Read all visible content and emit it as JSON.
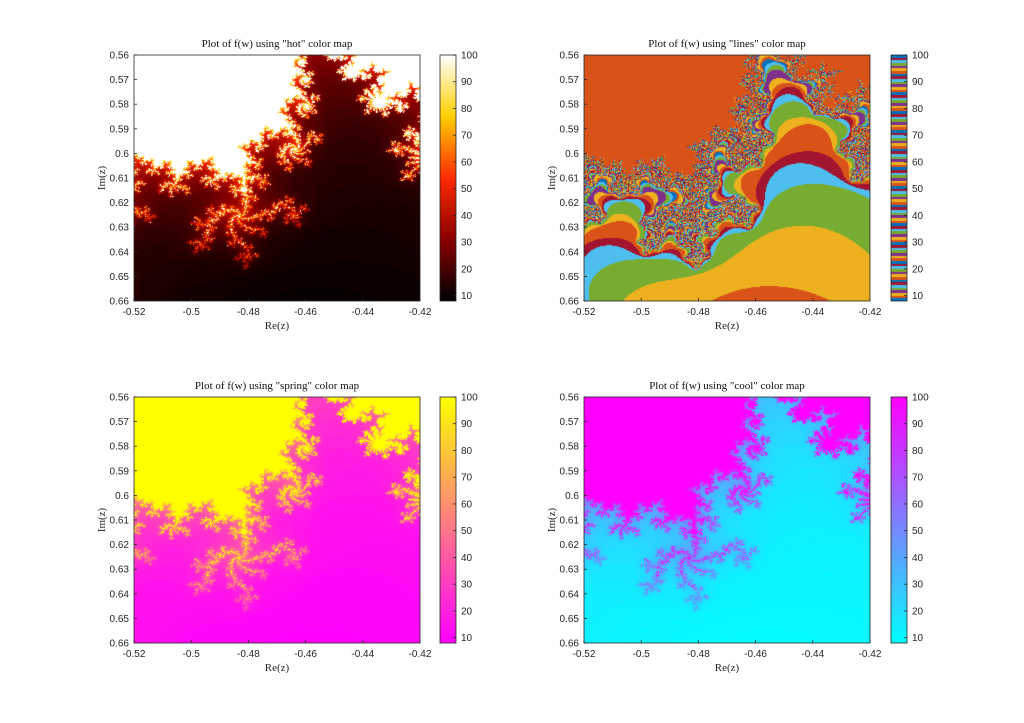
{
  "chart_data": [
    {
      "type": "heatmap",
      "title": "Plot of f(w) using \"hot\" color map",
      "xlabel": "Re(z)",
      "ylabel": "Im(z)",
      "xlim": [
        -0.52,
        -0.42
      ],
      "ylim": [
        0.56,
        0.66
      ],
      "y_direction": "reversed",
      "x_ticks": [
        "-0.52",
        "-0.5",
        "-0.48",
        "-0.46",
        "-0.44",
        "-0.42"
      ],
      "y_ticks": [
        "0.56",
        "0.57",
        "0.58",
        "0.59",
        "0.6",
        "0.61",
        "0.62",
        "0.63",
        "0.64",
        "0.65",
        "0.66"
      ],
      "colorbar": {
        "colormap": "hot",
        "range": [
          8,
          100
        ],
        "ticks": [
          "10",
          "20",
          "30",
          "40",
          "50",
          "60",
          "70",
          "80",
          "90",
          "100"
        ]
      },
      "colors": [
        "#000000",
        "#8b0000",
        "#ff2a00",
        "#ffd000",
        "#ffffff"
      ]
    },
    {
      "type": "heatmap",
      "title": "Plot of f(w) using \"lines\" color map",
      "xlabel": "Re(z)",
      "ylabel": "Im(z)",
      "xlim": [
        -0.52,
        -0.42
      ],
      "ylim": [
        0.56,
        0.66
      ],
      "y_direction": "reversed",
      "x_ticks": [
        "-0.52",
        "-0.5",
        "-0.48",
        "-0.46",
        "-0.44",
        "-0.42"
      ],
      "y_ticks": [
        "0.56",
        "0.57",
        "0.58",
        "0.59",
        "0.6",
        "0.61",
        "0.62",
        "0.63",
        "0.64",
        "0.65",
        "0.66"
      ],
      "colorbar": {
        "colormap": "lines",
        "range": [
          8,
          100
        ],
        "ticks": [
          "10",
          "20",
          "30",
          "40",
          "50",
          "60",
          "70",
          "80",
          "90",
          "100"
        ]
      },
      "colors": [
        "#0072bd",
        "#d95319",
        "#edb120",
        "#7e2f8e",
        "#77ac30",
        "#4dbeee",
        "#a2142f"
      ]
    },
    {
      "type": "heatmap",
      "title": "Plot of f(w) using \"spring\" color map",
      "xlabel": "Re(z)",
      "ylabel": "Im(z)",
      "xlim": [
        -0.52,
        -0.42
      ],
      "ylim": [
        0.56,
        0.66
      ],
      "y_direction": "reversed",
      "x_ticks": [
        "-0.52",
        "-0.5",
        "-0.48",
        "-0.46",
        "-0.44",
        "-0.42"
      ],
      "y_ticks": [
        "0.56",
        "0.57",
        "0.58",
        "0.59",
        "0.6",
        "0.61",
        "0.62",
        "0.63",
        "0.64",
        "0.65",
        "0.66"
      ],
      "colorbar": {
        "colormap": "spring",
        "range": [
          8,
          100
        ],
        "ticks": [
          "10",
          "20",
          "30",
          "40",
          "50",
          "60",
          "70",
          "80",
          "90",
          "100"
        ]
      },
      "colors": [
        "#ff00ff",
        "#ffff00"
      ]
    },
    {
      "type": "heatmap",
      "title": "Plot of f(w) using \"cool\" color map",
      "xlabel": "Re(z)",
      "ylabel": "Im(z)",
      "xlim": [
        -0.52,
        -0.42
      ],
      "ylim": [
        0.56,
        0.66
      ],
      "y_direction": "reversed",
      "x_ticks": [
        "-0.52",
        "-0.5",
        "-0.48",
        "-0.46",
        "-0.44",
        "-0.42"
      ],
      "y_ticks": [
        "0.56",
        "0.57",
        "0.58",
        "0.59",
        "0.6",
        "0.61",
        "0.62",
        "0.63",
        "0.64",
        "0.65",
        "0.66"
      ],
      "colorbar": {
        "colormap": "cool",
        "range": [
          8,
          100
        ],
        "ticks": [
          "10",
          "20",
          "30",
          "40",
          "50",
          "60",
          "70",
          "80",
          "90",
          "100"
        ]
      },
      "colors": [
        "#00ffff",
        "#ff00ff"
      ]
    }
  ]
}
